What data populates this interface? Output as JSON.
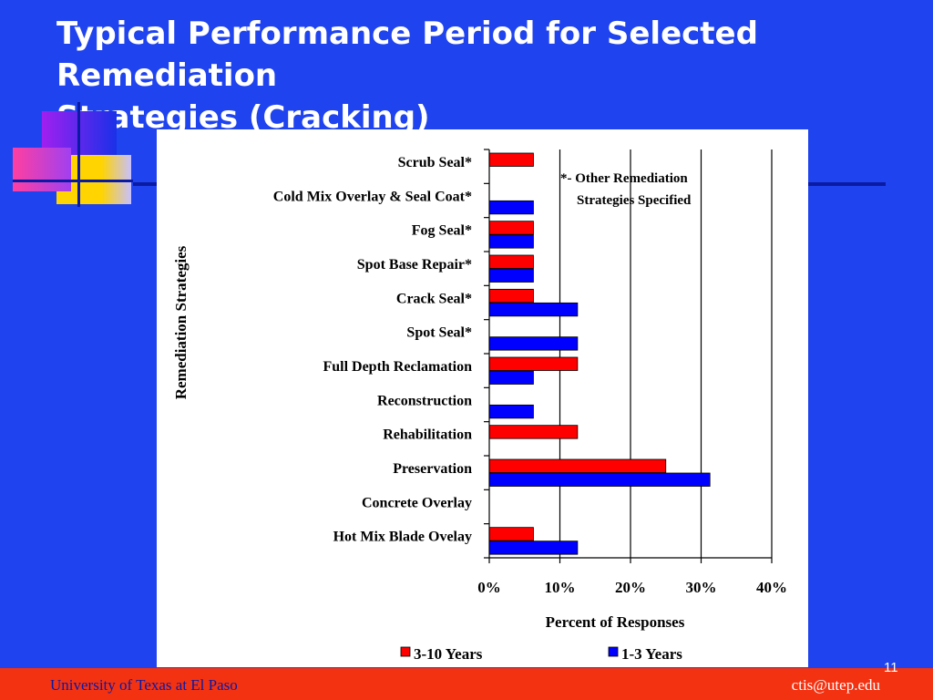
{
  "slide": {
    "title_line1": "Typical Performance Period for Selected Remediation",
    "title_line2": "Strategies  (Cracking)",
    "page_number": "11"
  },
  "footer": {
    "left_text": "University of Texas at El Paso",
    "right_text": "ctis@utep.edu"
  },
  "colors": {
    "background": "#1f43ee",
    "footer": "#f33212",
    "series_3_10": "#ff0000",
    "series_1_3": "#0000ff"
  },
  "chart_data": {
    "type": "bar",
    "orientation": "horizontal",
    "title": "",
    "xlabel": "Percent of Responses",
    "ylabel": "Remediation Strategies",
    "xlim": [
      0,
      40
    ],
    "x_ticks": [
      "0%",
      "10%",
      "20%",
      "30%",
      "40%"
    ],
    "grid": "vertical",
    "legend_position": "bottom",
    "note_line1": "*- Other Remediation",
    "note_line2": "Strategies Specified",
    "categories": [
      "Scrub Seal*",
      "Cold Mix Overlay  & Seal Coat*",
      "Fog Seal*",
      "Spot Base Repair*",
      "Crack Seal*",
      "Spot Seal*",
      "Full Depth Reclamation",
      "Reconstruction",
      "Rehabilitation",
      "Preservation",
      "Concrete Overlay",
      "Hot Mix Blade Ovelay"
    ],
    "series": [
      {
        "name": "3-10 Years",
        "color": "#ff0000",
        "values": [
          6.25,
          0,
          6.25,
          6.25,
          6.25,
          0,
          12.5,
          0,
          12.5,
          25,
          0,
          6.25
        ]
      },
      {
        "name": "1-3 Years",
        "color": "#0000ff",
        "values": [
          0,
          6.25,
          6.25,
          6.25,
          12.5,
          12.5,
          6.25,
          6.25,
          0,
          31.25,
          0,
          12.5
        ]
      }
    ]
  }
}
